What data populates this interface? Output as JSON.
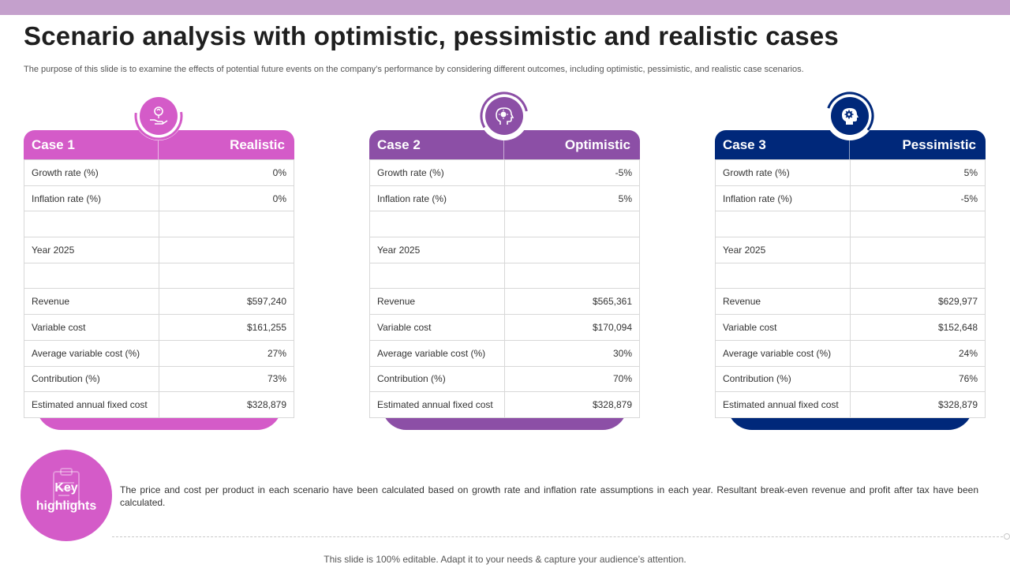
{
  "title": "Scenario analysis with optimistic, pessimistic and realistic cases",
  "subtitle": "The purpose of this slide is to examine the effects of potential future events on the company’s performance by considering different outcomes, including optimistic, pessimistic, and realistic case scenarios.",
  "colors": {
    "top_bar": "#c4a0cc",
    "realistic": "#d45bc8",
    "optimistic": "#8c4fa6",
    "pessimistic": "#00287a"
  },
  "cards": [
    {
      "case_label": "Case 1",
      "scenario": "Realistic",
      "icon": "plant-in-hand-icon",
      "rows": [
        {
          "label": "Growth rate (%)",
          "value": "0%"
        },
        {
          "label": "Inflation rate (%)",
          "value": "0%"
        },
        {
          "label": "",
          "value": ""
        },
        {
          "label": "Year 2025",
          "value": ""
        },
        {
          "label": "",
          "value": ""
        },
        {
          "label": "Revenue",
          "value": "$597,240"
        },
        {
          "label": "Variable cost",
          "value": "$161,255"
        },
        {
          "label": "Average variable cost (%)",
          "value": "27%"
        },
        {
          "label": "Contribution (%)",
          "value": "73%"
        },
        {
          "label": "Estimated annual fixed cost",
          "value": "$328,879"
        }
      ]
    },
    {
      "case_label": "Case 2",
      "scenario": "Optimistic",
      "icon": "head-idea-icon",
      "rows": [
        {
          "label": "Growth rate (%)",
          "value": "-5%"
        },
        {
          "label": "Inflation rate (%)",
          "value": "5%"
        },
        {
          "label": "",
          "value": ""
        },
        {
          "label": "Year 2025",
          "value": ""
        },
        {
          "label": "",
          "value": ""
        },
        {
          "label": "Revenue",
          "value": "$565,361"
        },
        {
          "label": "Variable cost",
          "value": "$170,094"
        },
        {
          "label": "Average variable cost (%)",
          "value": "30%"
        },
        {
          "label": "Contribution (%)",
          "value": "70%"
        },
        {
          "label": "Estimated annual fixed cost",
          "value": "$328,879"
        }
      ]
    },
    {
      "case_label": "Case 3",
      "scenario": "Pessimistic",
      "icon": "head-gear-icon",
      "rows": [
        {
          "label": "Growth rate (%)",
          "value": "5%"
        },
        {
          "label": "Inflation rate (%)",
          "value": "-5%"
        },
        {
          "label": "",
          "value": ""
        },
        {
          "label": "Year 2025",
          "value": ""
        },
        {
          "label": "",
          "value": ""
        },
        {
          "label": "Revenue",
          "value": "$629,977"
        },
        {
          "label": "Variable cost",
          "value": "$152,648"
        },
        {
          "label": "Average variable cost (%)",
          "value": "24%"
        },
        {
          "label": "Contribution (%)",
          "value": "76%"
        },
        {
          "label": "Estimated annual fixed cost",
          "value": "$328,879"
        }
      ]
    }
  ],
  "key_highlights": {
    "title_line1": "Key",
    "title_line2": "highlights",
    "text": "The price and cost per product in each scenario have been calculated based on growth rate and inflation rate assumptions in each year. Resultant break-even revenue and profit after tax have been calculated."
  },
  "footer_note": "This slide is 100% editable. Adapt it to your needs & capture your audience’s attention."
}
